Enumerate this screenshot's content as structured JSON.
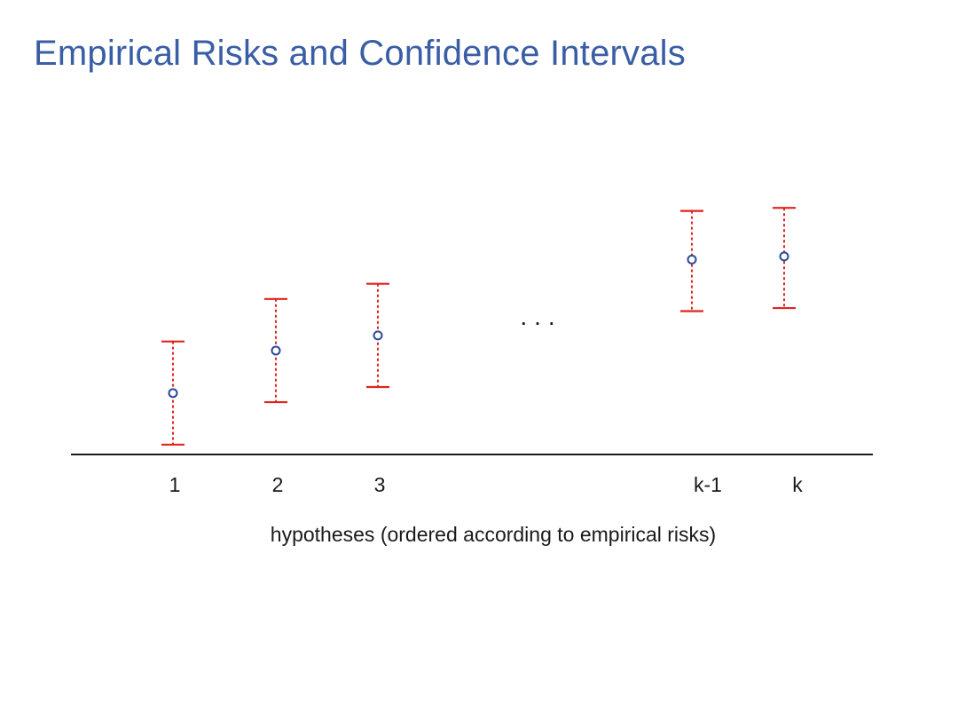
{
  "slide": {
    "title": "Empirical Risks and Confidence Intervals"
  },
  "chart_data": {
    "type": "scatter",
    "title": "Empirical Risks and Confidence Intervals",
    "xlabel": "hypotheses (ordered according to empirical risks)",
    "ylabel": "",
    "categories": [
      "1",
      "2",
      "3",
      "k-1",
      "k"
    ],
    "gap_marker": "...",
    "series": [
      {
        "values": [
          0.29,
          0.43,
          0.48,
          0.73,
          0.74
        ],
        "lower": [
          0.12,
          0.26,
          0.31,
          0.56,
          0.57
        ],
        "upper": [
          0.46,
          0.6,
          0.65,
          0.89,
          0.9
        ]
      }
    ],
    "ylim": [
      0,
      1
    ],
    "grid": false,
    "legend": "none",
    "colors": {
      "point": "#2c4a9a",
      "interval": "#e0241f",
      "axis": "#1a1a1a"
    }
  }
}
